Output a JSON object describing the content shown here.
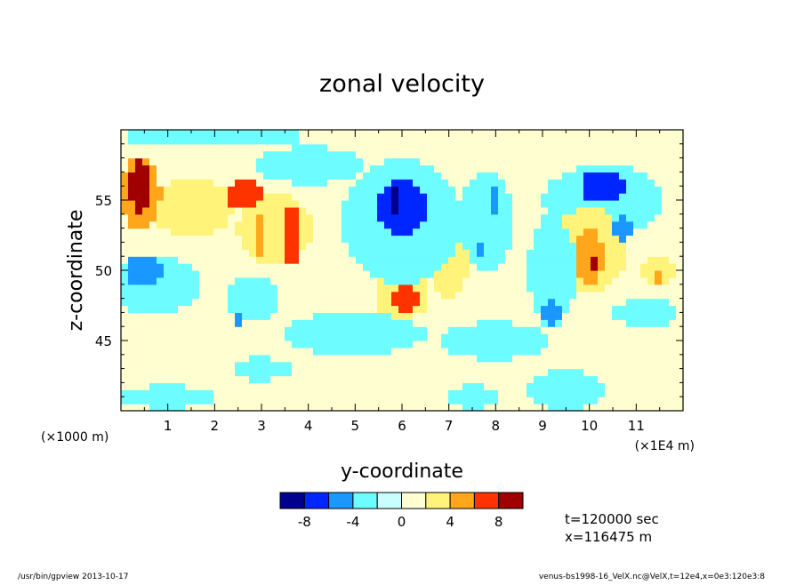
{
  "chart_data": {
    "type": "heatmap",
    "title": "zonal velocity",
    "xlabel": "y-coordinate",
    "ylabel": "z-coordinate",
    "x_unit_left": "(×1000 m)",
    "x_unit_right": "(×1E4 m)",
    "xlim": [
      0,
      12
    ],
    "ylim": [
      40,
      60
    ],
    "x_ticks": [
      1,
      2,
      3,
      4,
      5,
      6,
      7,
      8,
      9,
      10,
      11
    ],
    "y_ticks": [
      45,
      50,
      55
    ],
    "colorbar": {
      "levels": [
        -10,
        -8,
        -6,
        -4,
        -2,
        0,
        2,
        4,
        6,
        8,
        10
      ],
      "tick_labels": [
        "-8",
        "-4",
        "0",
        "4",
        "8"
      ],
      "tick_values": [
        -8,
        -4,
        0,
        4,
        8
      ],
      "colors": [
        "#00008f",
        "#0026ff",
        "#1a98ff",
        "#6dfcff",
        "#c9fefe",
        "#fffed0",
        "#fff37a",
        "#ffa61a",
        "#ff3300",
        "#a00000"
      ]
    },
    "background_value": 0.5,
    "features": [
      {
        "x": 0.4,
        "y": 56.0,
        "value": 9.0,
        "rx": 0.2,
        "ry": 1.8
      },
      {
        "x": 0.4,
        "y": 55.5,
        "value": 5.5,
        "rx": 0.45,
        "ry": 2.5
      },
      {
        "x": 1.5,
        "y": 54.5,
        "value": 2.5,
        "rx": 0.9,
        "ry": 2.0
      },
      {
        "x": 0.5,
        "y": 50.0,
        "value": -5.5,
        "rx": 0.35,
        "ry": 1.2
      },
      {
        "x": 0.7,
        "y": 49.0,
        "value": -2.5,
        "rx": 1.0,
        "ry": 2.0
      },
      {
        "x": 2.6,
        "y": 55.4,
        "value": 6.0,
        "rx": 0.4,
        "ry": 1.0
      },
      {
        "x": 3.65,
        "y": 52.5,
        "value": 6.5,
        "rx": 0.2,
        "ry": 2.2
      },
      {
        "x": 3.65,
        "y": 52.5,
        "value": 8.5,
        "rx": 0.06,
        "ry": 0.6
      },
      {
        "x": 2.95,
        "y": 52.5,
        "value": 5.0,
        "rx": 0.1,
        "ry": 1.5
      },
      {
        "x": 3.3,
        "y": 53.0,
        "value": 2.5,
        "rx": 0.8,
        "ry": 2.5
      },
      {
        "x": 2.5,
        "y": 46.5,
        "value": -5.5,
        "rx": 0.15,
        "ry": 0.7
      },
      {
        "x": 2.8,
        "y": 48.0,
        "value": -2.5,
        "rx": 0.6,
        "ry": 1.5
      },
      {
        "x": 4.0,
        "y": 57.5,
        "value": -2.5,
        "rx": 1.2,
        "ry": 1.3
      },
      {
        "x": 6.0,
        "y": 54.5,
        "value": -6.5,
        "rx": 0.5,
        "ry": 2.2
      },
      {
        "x": 5.85,
        "y": 55.0,
        "value": -9.0,
        "rx": 0.15,
        "ry": 0.9
      },
      {
        "x": 6.0,
        "y": 53.5,
        "value": -2.5,
        "rx": 1.3,
        "ry": 4.5
      },
      {
        "x": 6.1,
        "y": 48.0,
        "value": 6.0,
        "rx": 0.3,
        "ry": 1.0
      },
      {
        "x": 6.0,
        "y": 48.5,
        "value": 2.5,
        "rx": 0.6,
        "ry": 2.0
      },
      {
        "x": 7.0,
        "y": 50.5,
        "value": 2.5,
        "rx": 0.4,
        "ry": 2.5
      },
      {
        "x": 7.8,
        "y": 53.5,
        "value": -2.5,
        "rx": 0.6,
        "ry": 3.5
      },
      {
        "x": 8.0,
        "y": 55.0,
        "value": -5.0,
        "rx": 0.1,
        "ry": 1.0
      },
      {
        "x": 7.7,
        "y": 51.5,
        "value": -5.0,
        "rx": 0.08,
        "ry": 0.6
      },
      {
        "x": 9.2,
        "y": 47.0,
        "value": -5.5,
        "rx": 0.2,
        "ry": 1.0
      },
      {
        "x": 9.2,
        "y": 50.0,
        "value": -2.5,
        "rx": 0.5,
        "ry": 4.0
      },
      {
        "x": 10.0,
        "y": 51.0,
        "value": 5.5,
        "rx": 0.3,
        "ry": 2.0
      },
      {
        "x": 10.0,
        "y": 51.5,
        "value": 2.5,
        "rx": 0.8,
        "ry": 3.0
      },
      {
        "x": 10.15,
        "y": 50.5,
        "value": 8.5,
        "rx": 0.06,
        "ry": 0.5
      },
      {
        "x": 10.3,
        "y": 56.0,
        "value": -6.5,
        "rx": 0.5,
        "ry": 1.2
      },
      {
        "x": 10.3,
        "y": 55.0,
        "value": -2.5,
        "rx": 1.3,
        "ry": 2.5
      },
      {
        "x": 10.7,
        "y": 53.0,
        "value": -5.0,
        "rx": 0.2,
        "ry": 0.8
      },
      {
        "x": 11.5,
        "y": 49.5,
        "value": 5.0,
        "rx": 0.12,
        "ry": 0.5
      },
      {
        "x": 11.5,
        "y": 50.0,
        "value": 2.5,
        "rx": 0.4,
        "ry": 1.0
      },
      {
        "x": 11.2,
        "y": 47.0,
        "value": -2.5,
        "rx": 0.7,
        "ry": 1.0
      },
      {
        "x": 5.0,
        "y": 45.5,
        "value": -2.5,
        "rx": 1.5,
        "ry": 1.5
      },
      {
        "x": 8.0,
        "y": 45.0,
        "value": -2.5,
        "rx": 1.2,
        "ry": 1.3
      },
      {
        "x": 3.0,
        "y": 43.0,
        "value": -2.5,
        "rx": 0.6,
        "ry": 0.8
      },
      {
        "x": 1.0,
        "y": 41.0,
        "value": -2.5,
        "rx": 1.0,
        "ry": 0.8
      },
      {
        "x": 9.5,
        "y": 41.5,
        "value": -2.5,
        "rx": 0.8,
        "ry": 1.5
      },
      {
        "x": 7.5,
        "y": 41.0,
        "value": -2.5,
        "rx": 0.6,
        "ry": 0.8
      },
      {
        "x": 2.0,
        "y": 59.5,
        "value": -2.5,
        "rx": 2.0,
        "ry": 0.6
      }
    ]
  },
  "annotations": {
    "time": "t=120000 sec",
    "position": "x=116475 m",
    "footer_left": "/usr/bin/gpview   2013-10-17",
    "footer_right": "venus-bs1998-16_VelX.nc@VelX,t=12e4,x=0e3:120e3:8"
  }
}
